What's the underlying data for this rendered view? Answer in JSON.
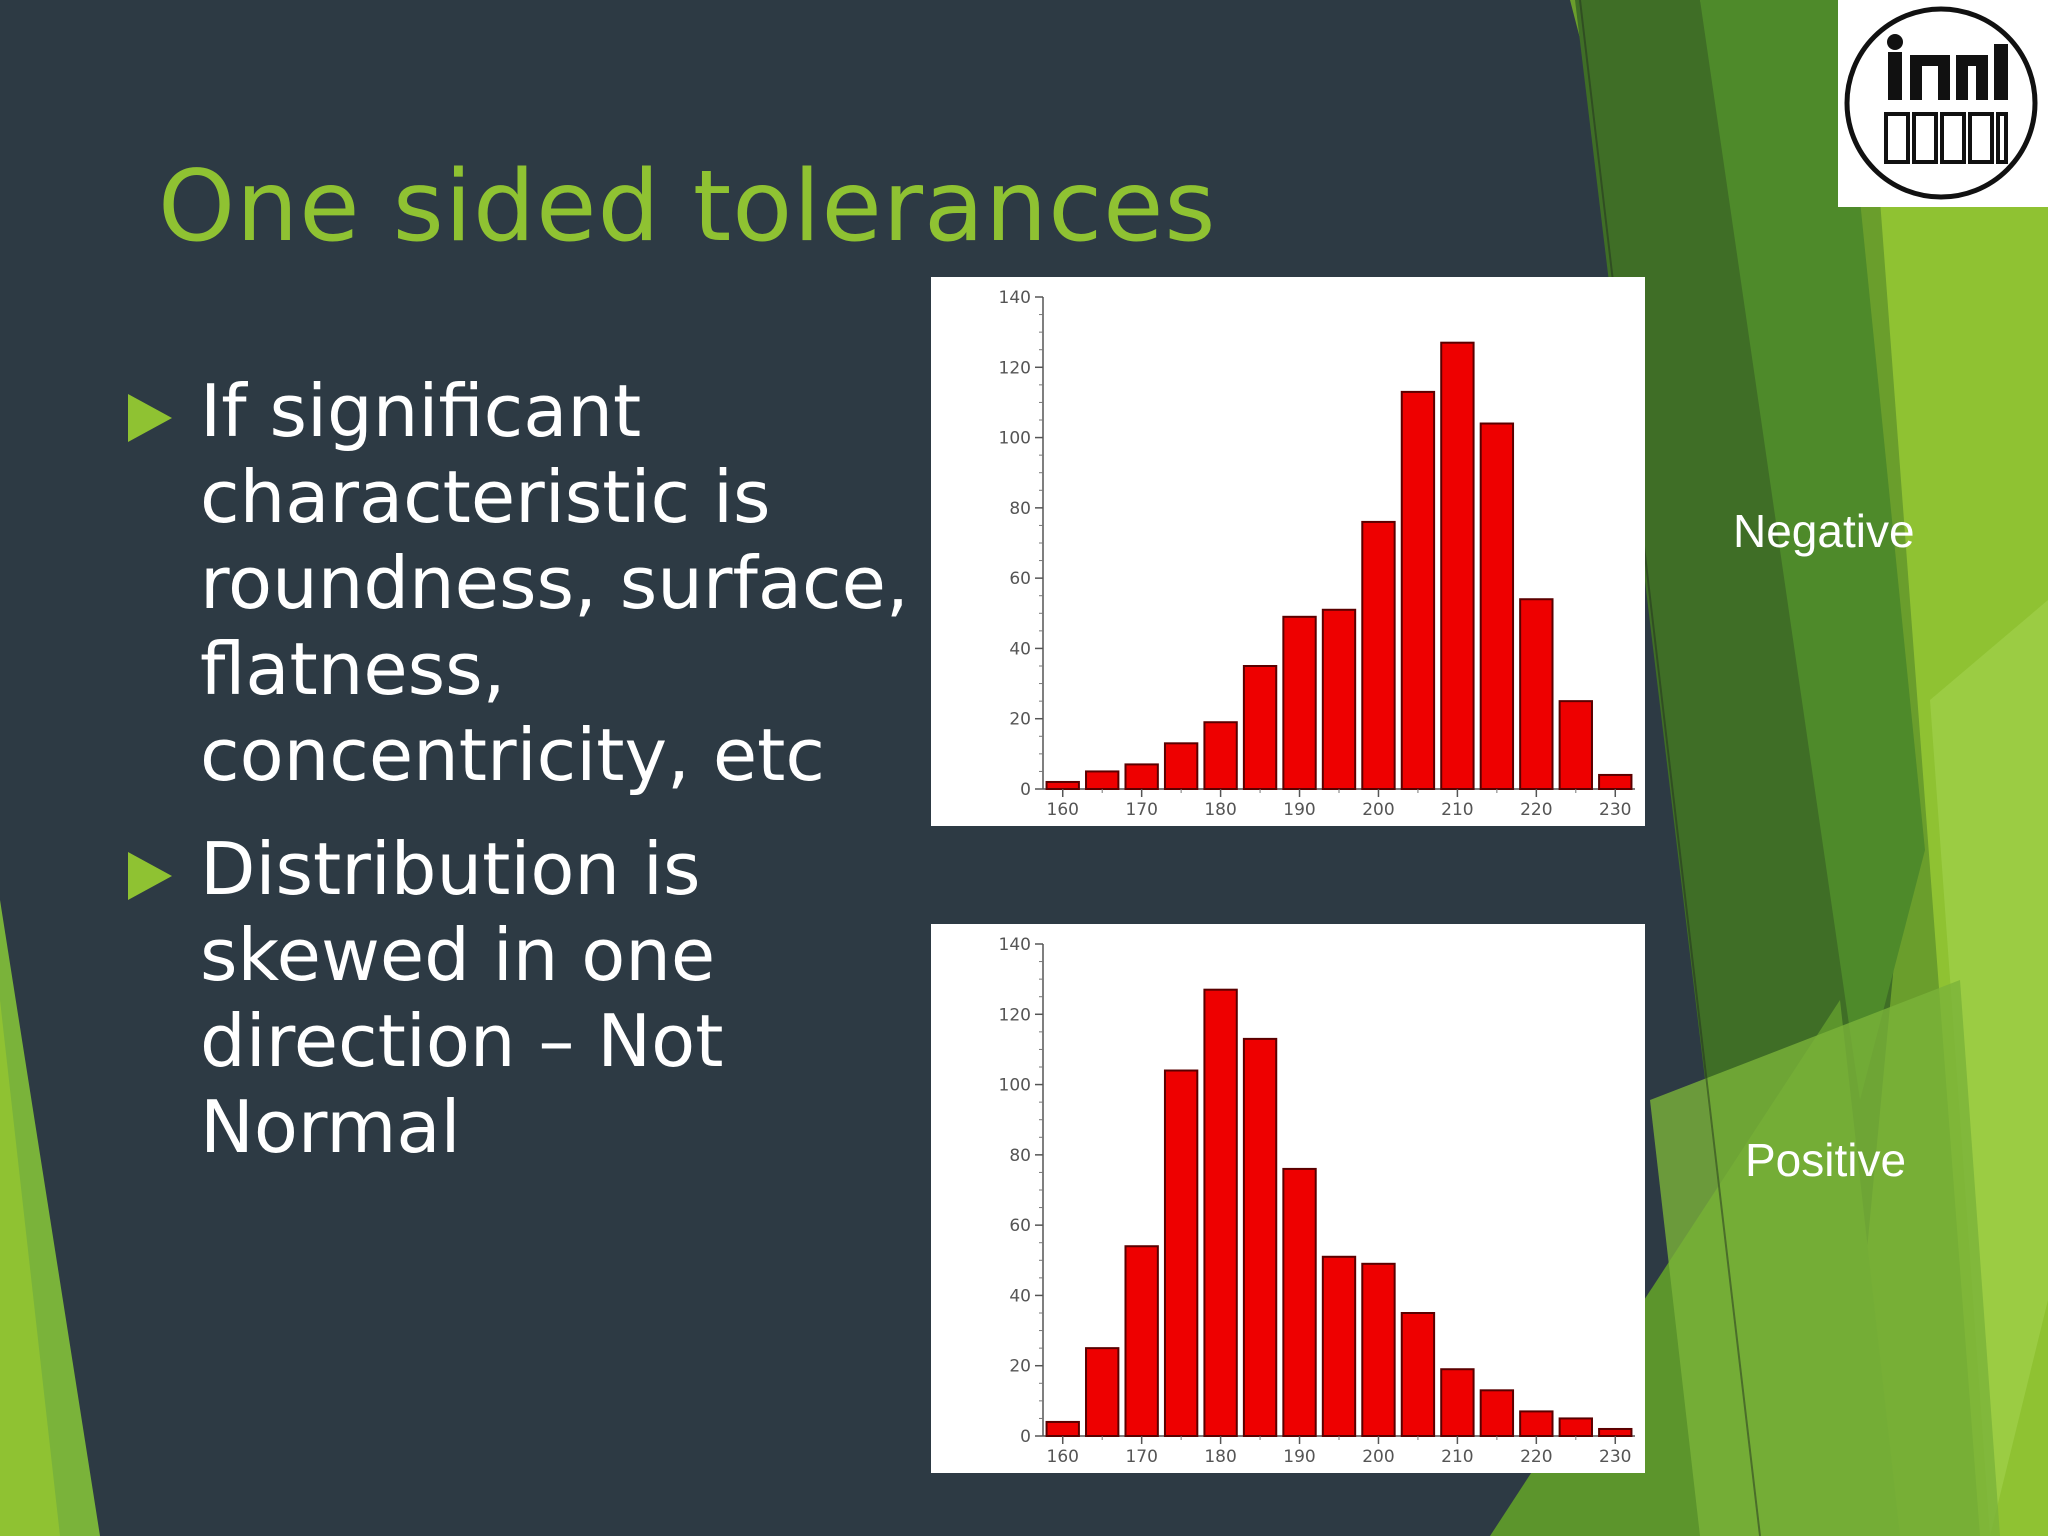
{
  "slide": {
    "title": "One sided tolerances",
    "bullets": [
      "If significant characteristic is roundness, surface, flatness, concentricity, etc",
      "Distribution is skewed in one direction – Not Normal"
    ],
    "labels": {
      "negative": "Negative",
      "positive": "Positive"
    },
    "logo_text": "IIM1 DDDAD"
  },
  "colors": {
    "background": "#2d3a44",
    "accent_green": "#8fc232",
    "bar_fill": "#ee0000",
    "bar_stroke": "#5a0000"
  },
  "chart_data": [
    {
      "type": "bar",
      "x": [
        160,
        165,
        170,
        175,
        180,
        185,
        190,
        195,
        200,
        205,
        210,
        215,
        220,
        225,
        230
      ],
      "values": [
        2,
        5,
        7,
        13,
        19,
        35,
        49,
        51,
        76,
        113,
        127,
        104,
        54,
        25,
        4
      ],
      "xticks": [
        160,
        170,
        180,
        190,
        200,
        210,
        220,
        230
      ],
      "yticks": [
        0,
        20,
        40,
        60,
        80,
        100,
        120,
        140
      ],
      "ylim": [
        0,
        140
      ],
      "xlabel": "",
      "ylabel": ""
    },
    {
      "type": "bar",
      "x": [
        160,
        165,
        170,
        175,
        180,
        185,
        190,
        195,
        200,
        205,
        210,
        215,
        220,
        225,
        230
      ],
      "values": [
        4,
        25,
        54,
        104,
        127,
        113,
        76,
        51,
        49,
        35,
        19,
        13,
        7,
        5,
        2
      ],
      "xticks": [
        160,
        170,
        180,
        190,
        200,
        210,
        220,
        230
      ],
      "yticks": [
        0,
        20,
        40,
        60,
        80,
        100,
        120,
        140
      ],
      "ylim": [
        0,
        140
      ],
      "xlabel": "",
      "ylabel": ""
    }
  ]
}
